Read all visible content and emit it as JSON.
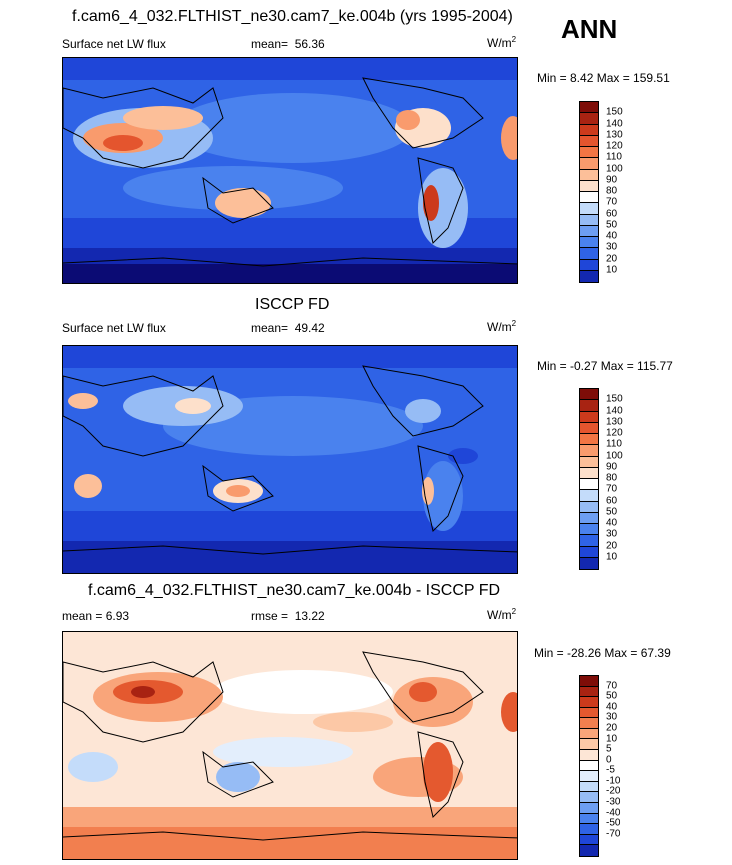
{
  "season": "ANN",
  "palettes": {
    "abs": [
      "#0b0b74",
      "#1328b0",
      "#1f46d8",
      "#2f63e6",
      "#4a82ee",
      "#6d9ef2",
      "#96bcf5",
      "#c4dcfa",
      "#ffffff",
      "#fde0cb",
      "#fcbf99",
      "#f99b6d",
      "#f27544",
      "#e4552e",
      "#cc3a1c",
      "#a82312",
      "#7e0d08"
    ],
    "diff": [
      "#0b0b74",
      "#1328b0",
      "#1f46d8",
      "#2f63e6",
      "#4a82ee",
      "#6d9ef2",
      "#96bcf5",
      "#c4dcfa",
      "#e3eefc",
      "#ffffff",
      "#fde6d6",
      "#fcc8a6",
      "#f9a57a",
      "#f27f4f",
      "#e4592f",
      "#cc3a1c",
      "#a82312",
      "#7e0d08"
    ]
  },
  "panels": [
    {
      "title": "f.cam6_4_032.FLTHIST_ne30.cam7_ke.004b (yrs 1995-2004)",
      "left_label": "Surface net LW flux",
      "stat_label": "mean=",
      "stat_value": "56.36",
      "units": "W/m",
      "units_sup": "2",
      "minmax": "Min =  8.42 Max = 159.51",
      "colorbar_ticks": [
        "150",
        "140",
        "130",
        "120",
        "110",
        "100",
        "90",
        "80",
        "70",
        "60",
        "50",
        "40",
        "30",
        "20",
        "10"
      ]
    },
    {
      "title": "ISCCP FD",
      "left_label": "Surface net LW flux",
      "stat_label": "mean=",
      "stat_value": "49.42",
      "units": "W/m",
      "units_sup": "2",
      "minmax": "Min = -0.27 Max = 115.77",
      "colorbar_ticks": [
        "150",
        "140",
        "130",
        "120",
        "110",
        "100",
        "90",
        "80",
        "70",
        "60",
        "50",
        "40",
        "30",
        "20",
        "10"
      ]
    },
    {
      "title": "f.cam6_4_032.FLTHIST_ne30.cam7_ke.004b - ISCCP FD",
      "left_label": "mean =  6.93",
      "stat_label": "rmse =",
      "stat_value": "13.22",
      "units": "W/m",
      "units_sup": "2",
      "minmax": "Min = -28.26 Max = 67.39",
      "colorbar_ticks": [
        "70",
        "50",
        "40",
        "30",
        "20",
        "10",
        "5",
        "0",
        "-5",
        "-10",
        "-20",
        "-30",
        "-40",
        "-50",
        "-70"
      ]
    }
  ],
  "chart_data": [
    {
      "type": "heatmap",
      "title": "f.cam6_4_032.FLTHIST_ne30.cam7_ke.004b (yrs 1995-2004)",
      "variable": "Surface net LW flux",
      "units": "W/m2",
      "mean": 56.36,
      "min": 8.42,
      "max": 159.51,
      "levels": [
        10,
        20,
        30,
        40,
        50,
        60,
        70,
        80,
        90,
        100,
        110,
        120,
        130,
        140,
        150
      ]
    },
    {
      "type": "heatmap",
      "title": "ISCCP FD",
      "variable": "Surface net LW flux",
      "units": "W/m2",
      "mean": 49.42,
      "min": -0.27,
      "max": 115.77,
      "levels": [
        10,
        20,
        30,
        40,
        50,
        60,
        70,
        80,
        90,
        100,
        110,
        120,
        130,
        140,
        150
      ]
    },
    {
      "type": "heatmap",
      "title": "f.cam6_4_032.FLTHIST_ne30.cam7_ke.004b - ISCCP FD",
      "units": "W/m2",
      "mean": 6.93,
      "rmse": 13.22,
      "min": -28.26,
      "max": 67.39,
      "levels": [
        -70,
        -50,
        -40,
        -30,
        -20,
        -10,
        -5,
        0,
        5,
        10,
        20,
        30,
        40,
        50,
        70
      ]
    }
  ]
}
